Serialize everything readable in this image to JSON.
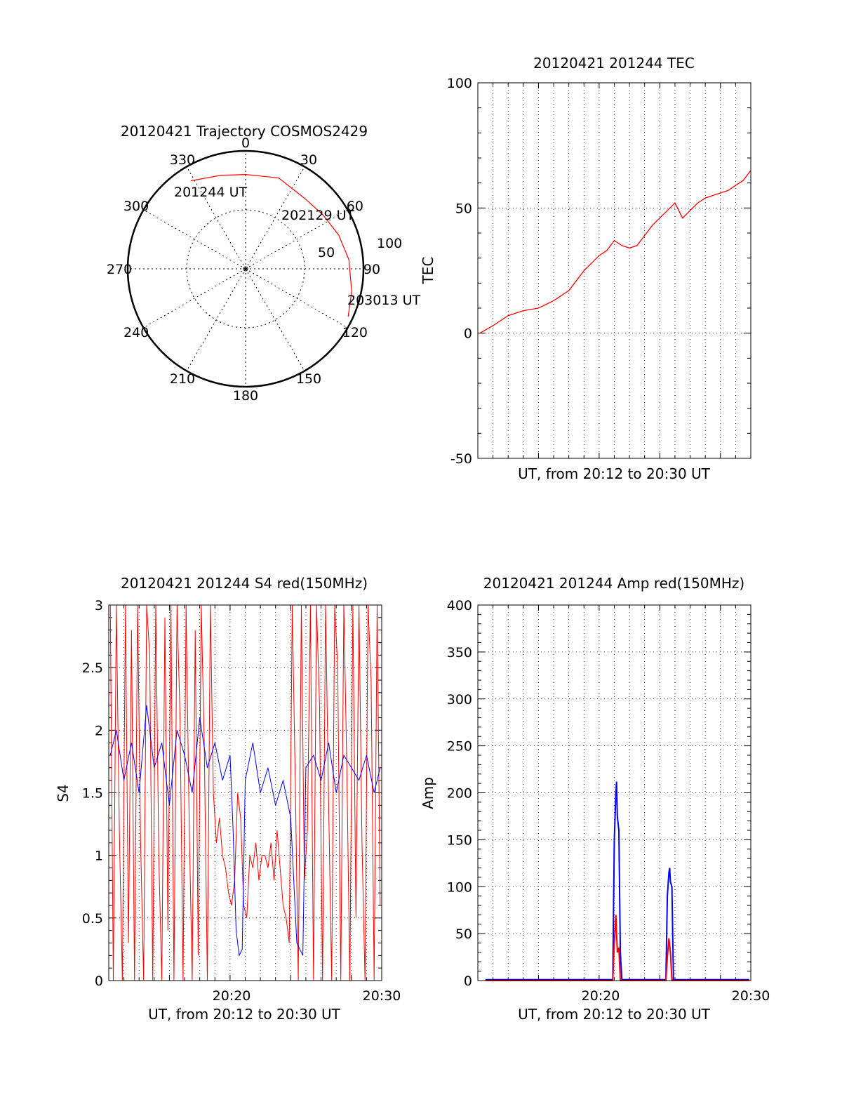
{
  "chart_data": [
    {
      "type": "polar",
      "title": "20120421 Trajectory COSMOS2429",
      "angle_labels": [
        "0",
        "30",
        "60",
        "90",
        "120",
        "150",
        "180",
        "210",
        "240",
        "270",
        "300",
        "330"
      ],
      "radius_labels": [
        "50",
        "100"
      ],
      "start_label": "201244 UT",
      "mid_label": "202129 UT",
      "end_label": "203013 UT",
      "trajectory": [
        {
          "az": 328,
          "r": 88
        },
        {
          "az": 345,
          "r": 82
        },
        {
          "az": 0,
          "r": 80
        },
        {
          "az": 20,
          "r": 82
        },
        {
          "az": 40,
          "r": 78
        },
        {
          "az": 55,
          "r": 80
        },
        {
          "az": 70,
          "r": 84
        },
        {
          "az": 85,
          "r": 88
        },
        {
          "az": 102,
          "r": 92
        },
        {
          "az": 115,
          "r": 96
        }
      ],
      "trajectory_color": "#ff0000"
    },
    {
      "type": "line",
      "title": "20120421 201244 TEC",
      "xlabel": "UT, from 20:12 to 20:30 UT",
      "ylabel": "TEC",
      "ylim": [
        -50,
        100
      ],
      "yticks": [
        "-50",
        "0",
        "50",
        "100"
      ],
      "xlim": [
        0,
        18
      ],
      "grid": true,
      "series": [
        {
          "color": "#ff0000",
          "x": [
            0.13,
            1,
            2,
            3,
            4,
            5,
            6,
            6.5,
            7,
            7.5,
            8,
            8.5,
            9,
            9.5,
            10,
            10.5,
            11,
            11.5,
            12,
            12.5,
            13,
            13.5,
            14,
            14.5,
            15,
            15.5,
            16,
            16.5,
            17,
            17.5,
            18
          ],
          "y": [
            0,
            3,
            7,
            9,
            10,
            13,
            17,
            21,
            25,
            28,
            31,
            33,
            37,
            35,
            34,
            35,
            39,
            43,
            46,
            49,
            52,
            46,
            49,
            52,
            54,
            55,
            56,
            57,
            59,
            61,
            65
          ]
        }
      ]
    },
    {
      "type": "line",
      "title": "20120421 201244 S4 red(150MHz)",
      "xlabel": "UT, from 20:12 to 20:30 UT",
      "ylabel": "S4",
      "ylim": [
        0,
        3
      ],
      "yticks": [
        "0",
        "0.5",
        "1",
        "1.5",
        "2",
        "2.5",
        "3"
      ],
      "xticks": [
        "20:20",
        "20:30"
      ],
      "grid": true,
      "series": [
        {
          "color": "#ff0000",
          "x": [
            0.1,
            0.3,
            0.5,
            0.7,
            0.9,
            1.1,
            1.3,
            1.5,
            1.7,
            1.9,
            2.1,
            2.3,
            2.5,
            2.7,
            2.9,
            3.1,
            3.3,
            3.5,
            3.7,
            3.9,
            4.1,
            4.3,
            4.5,
            4.7,
            4.9,
            5.1,
            5.3,
            5.5,
            5.7,
            5.9,
            6.1,
            6.3,
            6.5,
            6.7,
            6.9,
            7.1,
            7.3,
            7.5,
            7.7,
            7.9,
            8.1,
            8.3,
            8.5,
            8.7,
            8.9,
            9.1,
            9.3,
            9.5,
            9.7,
            9.9,
            10.1,
            10.3,
            10.5,
            10.7,
            10.9,
            11.1,
            11.3,
            11.5,
            11.7,
            11.9,
            12.1,
            12.3,
            12.5,
            12.7,
            12.9,
            13.1,
            13.3,
            13.5,
            13.7,
            13.9,
            14.1,
            14.3,
            14.5,
            14.7,
            14.9,
            15.1,
            15.3,
            15.5,
            15.7,
            15.9,
            16.1,
            16.3,
            16.5,
            16.7,
            16.9,
            17.1,
            17.3,
            17.5,
            17.7,
            17.9
          ],
          "y": [
            3,
            0,
            3,
            1.2,
            0,
            3,
            0.3,
            2.8,
            0,
            3,
            1.1,
            0,
            3,
            2.6,
            0,
            3,
            1.0,
            0,
            2.9,
            0.4,
            3,
            0,
            3,
            2.1,
            0,
            3,
            1.3,
            0,
            2.8,
            0.2,
            3,
            1.9,
            0,
            3,
            1.5,
            1.1,
            1.3,
            1.0,
            0.9,
            0.7,
            0.6,
            0.8,
            1.5,
            1.3,
            0.6,
            0.5,
            1.0,
            0.9,
            1.1,
            0.8,
            1.0,
            1.0,
            0.9,
            1.1,
            0.8,
            1.2,
            0.9,
            0.6,
            0.5,
            0.3,
            3,
            1.6,
            0,
            3,
            0.8,
            1.2,
            3,
            0,
            3,
            2.2,
            0,
            3,
            1.4,
            0,
            3,
            2.5,
            0,
            3,
            1.7,
            0,
            3,
            0.5,
            3,
            1.1,
            0,
            3,
            2.4,
            0,
            3,
            0.6
          ],
          "note_x_is_minutes_from_20:12": false
        },
        {
          "color": "#0000ff",
          "x": [
            0.1,
            0.5,
            1,
            1.5,
            2,
            2.5,
            3,
            3.5,
            4,
            4.5,
            5,
            5.5,
            6,
            6.5,
            7,
            7.5,
            8,
            8.2,
            8.4,
            8.6,
            8.8,
            9,
            9.5,
            10,
            10.5,
            11,
            11.5,
            12,
            12.4,
            12.8,
            13,
            13.5,
            14,
            14.5,
            15,
            15.5,
            16,
            16.5,
            17,
            17.5,
            17.9
          ],
          "y": [
            1.8,
            2.0,
            1.6,
            1.9,
            1.5,
            2.2,
            1.7,
            1.9,
            1.4,
            2.0,
            1.8,
            1.5,
            2.1,
            1.7,
            1.9,
            1.6,
            1.8,
            1.2,
            0.4,
            0.2,
            0.25,
            1.6,
            1.9,
            1.5,
            1.7,
            1.4,
            1.6,
            1.3,
            0.3,
            0.2,
            1.7,
            1.8,
            1.6,
            1.9,
            1.5,
            1.8,
            1.7,
            1.6,
            1.8,
            1.5,
            1.7
          ]
        }
      ]
    },
    {
      "type": "line",
      "title": "20120421 201244 Amp red(150MHz)",
      "xlabel": "UT, from 20:12 to 20:30 UT",
      "ylabel": "Amp",
      "ylim": [
        0,
        400
      ],
      "yticks": [
        "0",
        "50",
        "100",
        "150",
        "200",
        "250",
        "300",
        "350",
        "400"
      ],
      "xticks": [
        "20:20",
        "20:30"
      ],
      "grid": true,
      "series": [
        {
          "color": "#ff0000",
          "x": [
            0.5,
            8.9,
            9.0,
            9.1,
            9.2,
            9.3,
            9.4,
            12.4,
            12.5,
            12.6,
            12.7,
            12.8,
            17.9
          ],
          "y": [
            0,
            0,
            40,
            70,
            30,
            35,
            0,
            0,
            25,
            45,
            30,
            0,
            0
          ]
        },
        {
          "color": "#0000ff",
          "x": [
            0.5,
            8.9,
            9.0,
            9.1,
            9.15,
            9.2,
            9.3,
            9.4,
            9.5,
            12.4,
            12.5,
            12.6,
            12.65,
            12.7,
            12.8,
            12.9,
            17.9
          ],
          "y": [
            1,
            1,
            150,
            200,
            212,
            175,
            160,
            30,
            1,
            1,
            90,
            115,
            120,
            105,
            100,
            1,
            1
          ]
        }
      ]
    }
  ]
}
